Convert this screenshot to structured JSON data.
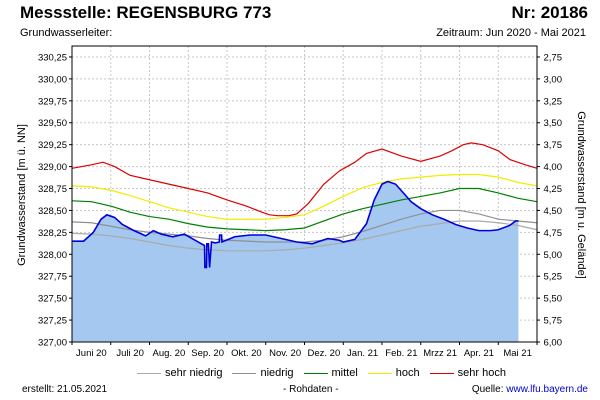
{
  "header": {
    "title": "Messstelle: REGENSBURG 773",
    "nr": "Nr: 20186",
    "subtitle_left": "Grundwasserleiter:",
    "subtitle_right": "Zeitraum: Jun 2020 - Mai 2021"
  },
  "footer": {
    "created": "erstellt:  21.05.2021",
    "note": "- Rohdaten -",
    "source_label": "Quelle: ",
    "source_link": "www.lfu.bayern.de"
  },
  "colors": {
    "fill": "#a4c8f0",
    "measured": "#0000dd",
    "sehr_niedrig": "#aaaaaa",
    "niedrig": "#909090",
    "mittel": "#008000",
    "hoch": "#eeee00",
    "sehr_hoch": "#dd0000",
    "grid": "#c8c8c8"
  },
  "chart_data": {
    "type": "line",
    "title": "Messstelle: REGENSBURG 773",
    "ylabel": "Grundwasserstand [m ü. NN]",
    "ylabel_right": "Grundwasserstand [m u. Gelände]",
    "ylim": [
      327.0,
      330.375
    ],
    "ylim_right": [
      6.0,
      2.625
    ],
    "xlim": [
      0,
      12
    ],
    "yticks": [
      "327,00",
      "327,25",
      "327,50",
      "327,75",
      "328,00",
      "328,25",
      "328,50",
      "328,75",
      "329,00",
      "329,25",
      "329,50",
      "329,75",
      "330,00",
      "330,25"
    ],
    "yticks_right": [
      "6,00",
      "5,75",
      "5,50",
      "5,25",
      "5,00",
      "4,75",
      "4,50",
      "4,25",
      "4,00",
      "3,75",
      "3,50",
      "3,25",
      "3,00",
      "2,75"
    ],
    "months": [
      "Juni 20",
      "Juli 20",
      "Aug. 20",
      "Sep. 20",
      "Okt. 20",
      "Nov. 20",
      "Dez. 20",
      "Jan. 21",
      "Feb. 21",
      "Mrzz 21",
      "Apr. 21",
      "Mai 21"
    ],
    "legend": [
      {
        "key": "sehr_niedrig",
        "label": "sehr niedrig"
      },
      {
        "key": "niedrig",
        "label": "niedrig"
      },
      {
        "key": "mittel",
        "label": "mittel"
      },
      {
        "key": "hoch",
        "label": "hoch"
      },
      {
        "key": "sehr_hoch",
        "label": "sehr hoch"
      }
    ],
    "series": [
      {
        "name": "sehr hoch",
        "key": "sehr_hoch",
        "x": [
          0,
          0.5,
          0.8,
          1.1,
          1.5,
          2.0,
          2.5,
          3.0,
          3.5,
          4.0,
          4.5,
          4.9,
          5.1,
          5.3,
          5.6,
          5.8,
          6.1,
          6.5,
          6.9,
          7.3,
          7.6,
          8.0,
          8.5,
          9.0,
          9.5,
          9.8,
          10.1,
          10.3,
          10.6,
          11.0,
          11.3,
          11.7,
          12
        ],
        "values": [
          328.98,
          329.02,
          329.05,
          329.0,
          328.9,
          328.85,
          328.8,
          328.75,
          328.7,
          328.62,
          328.55,
          328.48,
          328.45,
          328.44,
          328.44,
          328.46,
          328.58,
          328.8,
          328.95,
          329.05,
          329.15,
          329.2,
          329.12,
          329.06,
          329.12,
          329.18,
          329.25,
          329.27,
          329.25,
          329.18,
          329.08,
          329.02,
          328.98
        ]
      },
      {
        "name": "hoch",
        "key": "hoch",
        "x": [
          0,
          0.5,
          1.0,
          1.5,
          2.0,
          2.5,
          3.0,
          3.5,
          4.0,
          4.5,
          5.0,
          5.5,
          6.0,
          6.5,
          7.0,
          7.5,
          8.0,
          8.5,
          9.0,
          9.5,
          10.0,
          10.5,
          11.0,
          11.5,
          12
        ],
        "values": [
          328.78,
          328.77,
          328.73,
          328.67,
          328.6,
          328.53,
          328.48,
          328.43,
          328.4,
          328.4,
          328.4,
          328.42,
          328.45,
          328.55,
          328.66,
          328.76,
          328.82,
          328.86,
          328.88,
          328.9,
          328.91,
          328.91,
          328.88,
          328.82,
          328.78
        ]
      },
      {
        "name": "mittel",
        "key": "mittel",
        "x": [
          0,
          0.5,
          1.0,
          1.5,
          2.0,
          2.5,
          3.0,
          3.5,
          4.0,
          4.5,
          5.0,
          5.5,
          6.0,
          6.5,
          7.0,
          7.5,
          8.0,
          8.5,
          9.0,
          9.5,
          10.0,
          10.5,
          11.0,
          11.5,
          12
        ],
        "values": [
          328.61,
          328.6,
          328.55,
          328.48,
          328.43,
          328.4,
          328.35,
          328.31,
          328.29,
          328.28,
          328.27,
          328.28,
          328.3,
          328.38,
          328.46,
          328.52,
          328.57,
          328.62,
          328.66,
          328.7,
          328.75,
          328.75,
          328.7,
          328.64,
          328.6
        ]
      },
      {
        "name": "niedrig",
        "key": "niedrig",
        "x": [
          0,
          0.5,
          1.0,
          1.5,
          2.0,
          2.5,
          3.0,
          3.5,
          4.0,
          4.5,
          5.0,
          5.5,
          6.0,
          6.5,
          7.0,
          7.5,
          8.0,
          8.5,
          9.0,
          9.5,
          10.0,
          10.5,
          11.0,
          11.5,
          12
        ],
        "values": [
          328.37,
          328.36,
          328.32,
          328.28,
          328.25,
          328.23,
          328.21,
          328.18,
          328.16,
          328.15,
          328.14,
          328.14,
          328.14,
          328.16,
          328.2,
          328.26,
          328.33,
          328.4,
          328.46,
          328.5,
          328.5,
          328.46,
          328.4,
          328.38,
          328.36
        ]
      },
      {
        "name": "sehr niedrig",
        "key": "sehr_niedrig",
        "x": [
          0,
          0.5,
          1.0,
          1.5,
          2.0,
          2.5,
          3.0,
          3.5,
          4.0,
          4.5,
          5.0,
          5.5,
          6.0,
          6.5,
          7.0,
          7.5,
          8.0,
          8.5,
          9.0,
          9.5,
          10.0,
          10.5,
          11.0,
          11.5,
          12
        ],
        "values": [
          328.24,
          328.23,
          328.21,
          328.18,
          328.14,
          328.1,
          328.07,
          328.05,
          328.04,
          328.04,
          328.04,
          328.05,
          328.07,
          328.1,
          328.13,
          328.17,
          328.22,
          328.27,
          328.32,
          328.35,
          328.38,
          328.38,
          328.36,
          328.33,
          328.28
        ]
      },
      {
        "name": "Messwerte",
        "key": "measured",
        "x": [
          0,
          0.3,
          0.55,
          0.75,
          0.9,
          1.1,
          1.3,
          1.6,
          1.9,
          2.1,
          2.3,
          2.6,
          2.9,
          3.1,
          3.3,
          3.42,
          3.43,
          3.47,
          3.48,
          3.52,
          3.55,
          3.6,
          3.7,
          3.8,
          3.81,
          3.86,
          3.87,
          4.2,
          4.6,
          5.0,
          5.4,
          5.8,
          6.2,
          6.6,
          6.9,
          7.0,
          7.3,
          7.6,
          7.8,
          8.0,
          8.15,
          8.35,
          8.55,
          8.75,
          9.0,
          9.3,
          9.6,
          9.9,
          10.2,
          10.5,
          10.8,
          11.0,
          11.3,
          11.45,
          11.52
        ],
        "values": [
          328.15,
          328.15,
          328.25,
          328.4,
          328.45,
          328.42,
          328.34,
          328.27,
          328.21,
          328.27,
          328.23,
          328.2,
          328.23,
          328.18,
          328.13,
          328.1,
          327.85,
          327.85,
          328.12,
          328.12,
          327.85,
          328.14,
          328.13,
          328.14,
          328.22,
          328.22,
          328.14,
          328.2,
          328.22,
          328.22,
          328.18,
          328.14,
          328.12,
          328.18,
          328.16,
          328.14,
          328.17,
          328.35,
          328.62,
          328.8,
          328.83,
          328.8,
          328.7,
          328.6,
          328.52,
          328.45,
          328.4,
          328.34,
          328.3,
          328.27,
          328.27,
          328.28,
          328.33,
          328.38,
          328.38
        ]
      }
    ]
  }
}
